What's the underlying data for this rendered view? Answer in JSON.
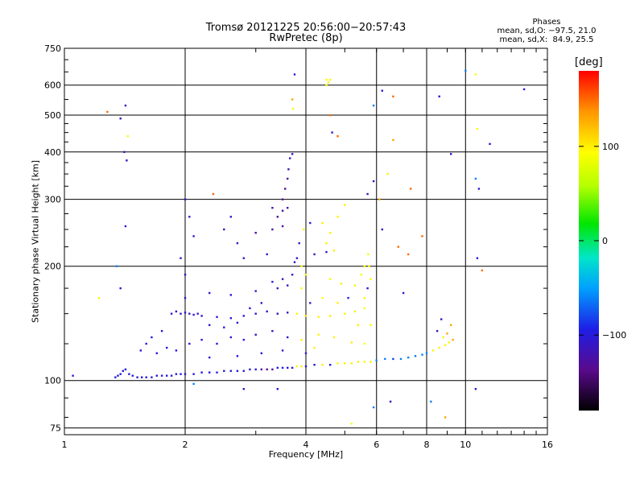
{
  "title_line1": "Tromsø 20121225 20:56:00−20:57:43",
  "title_line2": "RwPretec (8p)",
  "stats": {
    "heading": "Phases",
    "o_mode": "mean, sd,O: −97.5, 21.0",
    "x_mode": "mean, sd,X:  84.9, 25.5"
  },
  "colorbar": {
    "title": "[deg]",
    "range": [
      -180,
      180
    ],
    "ticks": [
      100,
      0,
      -100
    ],
    "tick_labels": [
      "100",
      "0",
      "−100"
    ]
  },
  "chart_data": {
    "type": "scatter",
    "xlabel": "Frequency [MHz]",
    "ylabel": "Stationary phase Virtual Height [km]",
    "x_scale": "log",
    "y_scale": "log",
    "xlim": [
      1,
      16
    ],
    "ylim": [
      72,
      750
    ],
    "x_ticks": [
      1,
      2,
      4,
      6,
      8,
      10,
      16
    ],
    "x_tick_labels": [
      "1",
      "2",
      "4",
      "6",
      "8",
      "10",
      "16"
    ],
    "y_ticks": [
      75,
      100,
      200,
      300,
      400,
      500,
      600,
      750
    ],
    "y_tick_labels": [
      "75",
      "100",
      "200",
      "300",
      "400",
      "500",
      "600",
      "750"
    ],
    "grid": true,
    "points": [
      {
        "x": 1.05,
        "y": 103,
        "phase": -100
      },
      {
        "x": 1.22,
        "y": 165,
        "phase": 100
      },
      {
        "x": 1.28,
        "y": 510,
        "phase": 150
      },
      {
        "x": 1.38,
        "y": 490,
        "phase": -110
      },
      {
        "x": 1.41,
        "y": 400,
        "phase": -110
      },
      {
        "x": 1.42,
        "y": 530,
        "phase": -110
      },
      {
        "x": 1.43,
        "y": 380,
        "phase": -110
      },
      {
        "x": 1.44,
        "y": 440,
        "phase": 90
      },
      {
        "x": 1.42,
        "y": 255,
        "phase": -100
      },
      {
        "x": 1.38,
        "y": 175,
        "phase": -100
      },
      {
        "x": 1.35,
        "y": 200,
        "phase": -60
      },
      {
        "x": 1.34,
        "y": 102,
        "phase": -100
      },
      {
        "x": 1.36,
        "y": 103,
        "phase": -100
      },
      {
        "x": 1.38,
        "y": 104,
        "phase": -100
      },
      {
        "x": 1.4,
        "y": 106,
        "phase": -100
      },
      {
        "x": 1.42,
        "y": 107,
        "phase": -100
      },
      {
        "x": 1.45,
        "y": 104,
        "phase": -100
      },
      {
        "x": 1.48,
        "y": 103,
        "phase": -100
      },
      {
        "x": 1.52,
        "y": 102,
        "phase": -100
      },
      {
        "x": 1.56,
        "y": 102,
        "phase": -100
      },
      {
        "x": 1.6,
        "y": 102,
        "phase": -100
      },
      {
        "x": 1.65,
        "y": 102,
        "phase": -100
      },
      {
        "x": 1.7,
        "y": 103,
        "phase": -100
      },
      {
        "x": 1.75,
        "y": 103,
        "phase": -100
      },
      {
        "x": 1.8,
        "y": 103,
        "phase": -100
      },
      {
        "x": 1.85,
        "y": 103,
        "phase": -100
      },
      {
        "x": 1.9,
        "y": 104,
        "phase": -100
      },
      {
        "x": 1.95,
        "y": 104,
        "phase": -100
      },
      {
        "x": 2.0,
        "y": 104,
        "phase": -100
      },
      {
        "x": 2.1,
        "y": 104,
        "phase": -100
      },
      {
        "x": 2.2,
        "y": 105,
        "phase": -100
      },
      {
        "x": 2.3,
        "y": 105,
        "phase": -100
      },
      {
        "x": 2.4,
        "y": 105,
        "phase": -100
      },
      {
        "x": 2.5,
        "y": 106,
        "phase": -100
      },
      {
        "x": 2.6,
        "y": 106,
        "phase": -100
      },
      {
        "x": 2.7,
        "y": 106,
        "phase": -100
      },
      {
        "x": 2.8,
        "y": 106,
        "phase": -100
      },
      {
        "x": 2.9,
        "y": 107,
        "phase": -100
      },
      {
        "x": 3.0,
        "y": 107,
        "phase": -100
      },
      {
        "x": 3.1,
        "y": 107,
        "phase": -130
      },
      {
        "x": 3.2,
        "y": 107,
        "phase": -130
      },
      {
        "x": 3.3,
        "y": 107,
        "phase": -130
      },
      {
        "x": 3.4,
        "y": 108,
        "phase": -100
      },
      {
        "x": 3.5,
        "y": 108,
        "phase": -100
      },
      {
        "x": 3.6,
        "y": 108,
        "phase": -100
      },
      {
        "x": 3.7,
        "y": 108,
        "phase": -100
      },
      {
        "x": 3.8,
        "y": 109,
        "phase": 100
      },
      {
        "x": 3.9,
        "y": 109,
        "phase": 100
      },
      {
        "x": 4.0,
        "y": 109,
        "phase": -100
      },
      {
        "x": 4.2,
        "y": 110,
        "phase": -100
      },
      {
        "x": 4.4,
        "y": 110,
        "phase": 100
      },
      {
        "x": 4.6,
        "y": 110,
        "phase": -100
      },
      {
        "x": 4.8,
        "y": 111,
        "phase": 90
      },
      {
        "x": 5.0,
        "y": 111,
        "phase": 100
      },
      {
        "x": 5.2,
        "y": 111,
        "phase": 100
      },
      {
        "x": 5.4,
        "y": 112,
        "phase": 100
      },
      {
        "x": 5.6,
        "y": 112,
        "phase": 100
      },
      {
        "x": 5.8,
        "y": 112,
        "phase": 100
      },
      {
        "x": 6.0,
        "y": 113,
        "phase": -60
      },
      {
        "x": 6.3,
        "y": 114,
        "phase": -60
      },
      {
        "x": 6.6,
        "y": 114,
        "phase": -80
      },
      {
        "x": 6.9,
        "y": 114,
        "phase": -60
      },
      {
        "x": 7.2,
        "y": 115,
        "phase": -60
      },
      {
        "x": 7.5,
        "y": 116,
        "phase": -60
      },
      {
        "x": 7.8,
        "y": 117,
        "phase": -60
      },
      {
        "x": 8.0,
        "y": 118,
        "phase": -60
      },
      {
        "x": 8.3,
        "y": 120,
        "phase": 100
      },
      {
        "x": 8.6,
        "y": 122,
        "phase": 100
      },
      {
        "x": 8.9,
        "y": 124,
        "phase": 100
      },
      {
        "x": 9.1,
        "y": 126,
        "phase": 100
      },
      {
        "x": 9.3,
        "y": 128,
        "phase": 130
      },
      {
        "x": 9.0,
        "y": 133,
        "phase": 130
      },
      {
        "x": 8.8,
        "y": 130,
        "phase": 100
      },
      {
        "x": 8.5,
        "y": 135,
        "phase": -110
      },
      {
        "x": 9.2,
        "y": 140,
        "phase": 130
      },
      {
        "x": 8.7,
        "y": 145,
        "phase": -110
      },
      {
        "x": 1.7,
        "y": 118,
        "phase": -100
      },
      {
        "x": 1.8,
        "y": 122,
        "phase": -100
      },
      {
        "x": 1.9,
        "y": 120,
        "phase": -100
      },
      {
        "x": 2.05,
        "y": 125,
        "phase": -100
      },
      {
        "x": 2.2,
        "y": 128,
        "phase": -100
      },
      {
        "x": 2.4,
        "y": 125,
        "phase": -100
      },
      {
        "x": 2.6,
        "y": 130,
        "phase": -100
      },
      {
        "x": 2.8,
        "y": 128,
        "phase": -100
      },
      {
        "x": 3.0,
        "y": 132,
        "phase": -100
      },
      {
        "x": 3.3,
        "y": 135,
        "phase": -100
      },
      {
        "x": 3.6,
        "y": 130,
        "phase": -100
      },
      {
        "x": 3.9,
        "y": 128,
        "phase": 100
      },
      {
        "x": 4.3,
        "y": 132,
        "phase": 100
      },
      {
        "x": 4.7,
        "y": 130,
        "phase": 100
      },
      {
        "x": 5.2,
        "y": 126,
        "phase": 100
      },
      {
        "x": 5.6,
        "y": 125,
        "phase": 90
      },
      {
        "x": 1.55,
        "y": 120,
        "phase": -100
      },
      {
        "x": 1.6,
        "y": 125,
        "phase": -100
      },
      {
        "x": 1.85,
        "y": 150,
        "phase": -100
      },
      {
        "x": 1.9,
        "y": 152,
        "phase": -100
      },
      {
        "x": 1.95,
        "y": 150,
        "phase": -110
      },
      {
        "x": 2.0,
        "y": 151,
        "phase": -110
      },
      {
        "x": 2.05,
        "y": 150,
        "phase": -110
      },
      {
        "x": 2.1,
        "y": 149,
        "phase": -110
      },
      {
        "x": 2.15,
        "y": 150,
        "phase": -110
      },
      {
        "x": 2.2,
        "y": 148,
        "phase": -100
      },
      {
        "x": 2.4,
        "y": 147,
        "phase": -100
      },
      {
        "x": 2.6,
        "y": 146,
        "phase": -100
      },
      {
        "x": 2.8,
        "y": 148,
        "phase": -100
      },
      {
        "x": 3.0,
        "y": 150,
        "phase": -110
      },
      {
        "x": 3.2,
        "y": 152,
        "phase": -110
      },
      {
        "x": 3.4,
        "y": 150,
        "phase": -110
      },
      {
        "x": 3.6,
        "y": 151,
        "phase": -110
      },
      {
        "x": 3.8,
        "y": 150,
        "phase": 100
      },
      {
        "x": 4.0,
        "y": 148,
        "phase": 100
      },
      {
        "x": 4.3,
        "y": 147,
        "phase": 100
      },
      {
        "x": 4.6,
        "y": 148,
        "phase": 100
      },
      {
        "x": 5.0,
        "y": 150,
        "phase": 100
      },
      {
        "x": 5.3,
        "y": 152,
        "phase": 100
      },
      {
        "x": 5.6,
        "y": 155,
        "phase": 90
      },
      {
        "x": 2.0,
        "y": 165,
        "phase": -110
      },
      {
        "x": 2.3,
        "y": 170,
        "phase": -110
      },
      {
        "x": 2.6,
        "y": 168,
        "phase": -100
      },
      {
        "x": 3.0,
        "y": 172,
        "phase": -110
      },
      {
        "x": 3.4,
        "y": 175,
        "phase": -120
      },
      {
        "x": 3.6,
        "y": 178,
        "phase": -120
      },
      {
        "x": 3.5,
        "y": 185,
        "phase": -120
      },
      {
        "x": 3.7,
        "y": 190,
        "phase": -110
      },
      {
        "x": 3.3,
        "y": 182,
        "phase": -100
      },
      {
        "x": 4.6,
        "y": 185,
        "phase": 90
      },
      {
        "x": 4.9,
        "y": 180,
        "phase": 100
      },
      {
        "x": 5.3,
        "y": 178,
        "phase": 100
      },
      {
        "x": 5.7,
        "y": 175,
        "phase": -100
      },
      {
        "x": 5.8,
        "y": 185,
        "phase": 90
      },
      {
        "x": 5.75,
        "y": 200,
        "phase": 90
      },
      {
        "x": 5.72,
        "y": 215,
        "phase": 90
      },
      {
        "x": 5.6,
        "y": 200,
        "phase": 90
      },
      {
        "x": 5.5,
        "y": 190,
        "phase": 90
      },
      {
        "x": 3.8,
        "y": 210,
        "phase": -110
      },
      {
        "x": 3.2,
        "y": 215,
        "phase": -110
      },
      {
        "x": 2.8,
        "y": 210,
        "phase": -110
      },
      {
        "x": 4.2,
        "y": 215,
        "phase": -110
      },
      {
        "x": 4.5,
        "y": 218,
        "phase": -110
      },
      {
        "x": 4.7,
        "y": 220,
        "phase": 100
      },
      {
        "x": 4.5,
        "y": 230,
        "phase": 100
      },
      {
        "x": 4.6,
        "y": 245,
        "phase": 100
      },
      {
        "x": 4.4,
        "y": 260,
        "phase": 100
      },
      {
        "x": 4.8,
        "y": 270,
        "phase": 100
      },
      {
        "x": 5.0,
        "y": 290,
        "phase": 100
      },
      {
        "x": 3.0,
        "y": 245,
        "phase": -130
      },
      {
        "x": 3.3,
        "y": 250,
        "phase": -130
      },
      {
        "x": 3.5,
        "y": 255,
        "phase": -130
      },
      {
        "x": 3.4,
        "y": 270,
        "phase": -130
      },
      {
        "x": 3.5,
        "y": 280,
        "phase": -130
      },
      {
        "x": 3.6,
        "y": 285,
        "phase": -120
      },
      {
        "x": 3.3,
        "y": 285,
        "phase": -130
      },
      {
        "x": 3.5,
        "y": 300,
        "phase": -130
      },
      {
        "x": 3.55,
        "y": 320,
        "phase": -130
      },
      {
        "x": 3.6,
        "y": 340,
        "phase": -130
      },
      {
        "x": 3.62,
        "y": 360,
        "phase": -120
      },
      {
        "x": 3.65,
        "y": 385,
        "phase": -110
      },
      {
        "x": 3.7,
        "y": 395,
        "phase": -110
      },
      {
        "x": 3.75,
        "y": 640,
        "phase": -100
      },
      {
        "x": 3.7,
        "y": 550,
        "phase": 130
      },
      {
        "x": 3.72,
        "y": 520,
        "phase": 90
      },
      {
        "x": 2.0,
        "y": 300,
        "phase": -110
      },
      {
        "x": 2.05,
        "y": 270,
        "phase": -110
      },
      {
        "x": 2.1,
        "y": 240,
        "phase": -110
      },
      {
        "x": 1.95,
        "y": 210,
        "phase": -110
      },
      {
        "x": 2.0,
        "y": 190,
        "phase": -110
      },
      {
        "x": 2.35,
        "y": 310,
        "phase": 150
      },
      {
        "x": 2.6,
        "y": 270,
        "phase": -110
      },
      {
        "x": 2.5,
        "y": 250,
        "phase": -110
      },
      {
        "x": 2.7,
        "y": 230,
        "phase": -110
      },
      {
        "x": 4.5,
        "y": 600,
        "phase": 90
      },
      {
        "x": 4.55,
        "y": 610,
        "phase": 100
      },
      {
        "x": 4.6,
        "y": 620,
        "phase": 90
      },
      {
        "x": 4.5,
        "y": 620,
        "phase": 90
      },
      {
        "x": 4.6,
        "y": 500,
        "phase": 150
      },
      {
        "x": 4.65,
        "y": 450,
        "phase": -110
      },
      {
        "x": 4.8,
        "y": 440,
        "phase": 150
      },
      {
        "x": 5.9,
        "y": 335,
        "phase": -110
      },
      {
        "x": 5.7,
        "y": 310,
        "phase": -110
      },
      {
        "x": 6.1,
        "y": 300,
        "phase": 130
      },
      {
        "x": 6.4,
        "y": 350,
        "phase": 100
      },
      {
        "x": 6.6,
        "y": 430,
        "phase": 130
      },
      {
        "x": 6.2,
        "y": 580,
        "phase": -100
      },
      {
        "x": 6.6,
        "y": 560,
        "phase": 150
      },
      {
        "x": 5.9,
        "y": 530,
        "phase": -60
      },
      {
        "x": 7.3,
        "y": 320,
        "phase": 150
      },
      {
        "x": 7.8,
        "y": 240,
        "phase": 150
      },
      {
        "x": 7.2,
        "y": 215,
        "phase": 150
      },
      {
        "x": 6.8,
        "y": 225,
        "phase": 150
      },
      {
        "x": 6.2,
        "y": 250,
        "phase": -110
      },
      {
        "x": 7.0,
        "y": 170,
        "phase": -110
      },
      {
        "x": 8.6,
        "y": 560,
        "phase": -100
      },
      {
        "x": 9.2,
        "y": 395,
        "phase": -110
      },
      {
        "x": 10.0,
        "y": 655,
        "phase": -60
      },
      {
        "x": 10.6,
        "y": 640,
        "phase": 90
      },
      {
        "x": 10.7,
        "y": 460,
        "phase": 90
      },
      {
        "x": 11.5,
        "y": 420,
        "phase": -110
      },
      {
        "x": 10.6,
        "y": 340,
        "phase": -60
      },
      {
        "x": 10.8,
        "y": 320,
        "phase": -100
      },
      {
        "x": 11.0,
        "y": 195,
        "phase": 150
      },
      {
        "x": 10.7,
        "y": 210,
        "phase": -100
      },
      {
        "x": 10.6,
        "y": 95,
        "phase": -110
      },
      {
        "x": 14.0,
        "y": 585,
        "phase": -100
      },
      {
        "x": 8.9,
        "y": 80,
        "phase": 130
      },
      {
        "x": 8.2,
        "y": 88,
        "phase": -60
      },
      {
        "x": 6.5,
        "y": 88,
        "phase": -110
      },
      {
        "x": 5.9,
        "y": 85,
        "phase": -60
      },
      {
        "x": 5.2,
        "y": 77,
        "phase": 90
      },
      {
        "x": 3.4,
        "y": 95,
        "phase": -100
      },
      {
        "x": 2.8,
        "y": 95,
        "phase": -110
      },
      {
        "x": 2.1,
        "y": 98,
        "phase": -60
      },
      {
        "x": 2.3,
        "y": 140,
        "phase": -100
      },
      {
        "x": 2.5,
        "y": 138,
        "phase": -100
      },
      {
        "x": 2.7,
        "y": 142,
        "phase": -100
      },
      {
        "x": 2.9,
        "y": 155,
        "phase": -100
      },
      {
        "x": 3.1,
        "y": 160,
        "phase": -110
      },
      {
        "x": 4.1,
        "y": 160,
        "phase": -110
      },
      {
        "x": 4.4,
        "y": 165,
        "phase": 90
      },
      {
        "x": 4.8,
        "y": 160,
        "phase": 100
      },
      {
        "x": 5.1,
        "y": 165,
        "phase": -100
      },
      {
        "x": 5.6,
        "y": 165,
        "phase": 100
      },
      {
        "x": 5.8,
        "y": 140,
        "phase": 90
      },
      {
        "x": 5.4,
        "y": 140,
        "phase": 100
      },
      {
        "x": 4.0,
        "y": 118,
        "phase": -100
      },
      {
        "x": 4.2,
        "y": 122,
        "phase": 100
      },
      {
        "x": 3.5,
        "y": 120,
        "phase": -100
      },
      {
        "x": 3.1,
        "y": 118,
        "phase": -100
      },
      {
        "x": 2.7,
        "y": 116,
        "phase": -100
      },
      {
        "x": 2.3,
        "y": 115,
        "phase": -100
      },
      {
        "x": 1.75,
        "y": 135,
        "phase": -100
      },
      {
        "x": 1.65,
        "y": 130,
        "phase": -100
      },
      {
        "x": 3.9,
        "y": 175,
        "phase": 90
      },
      {
        "x": 4.0,
        "y": 190,
        "phase": 90
      },
      {
        "x": 3.9,
        "y": 200,
        "phase": 90
      },
      {
        "x": 3.85,
        "y": 230,
        "phase": -110
      },
      {
        "x": 3.95,
        "y": 250,
        "phase": 100
      },
      {
        "x": 4.1,
        "y": 260,
        "phase": -100
      },
      {
        "x": 3.75,
        "y": 205,
        "phase": -110
      }
    ]
  }
}
